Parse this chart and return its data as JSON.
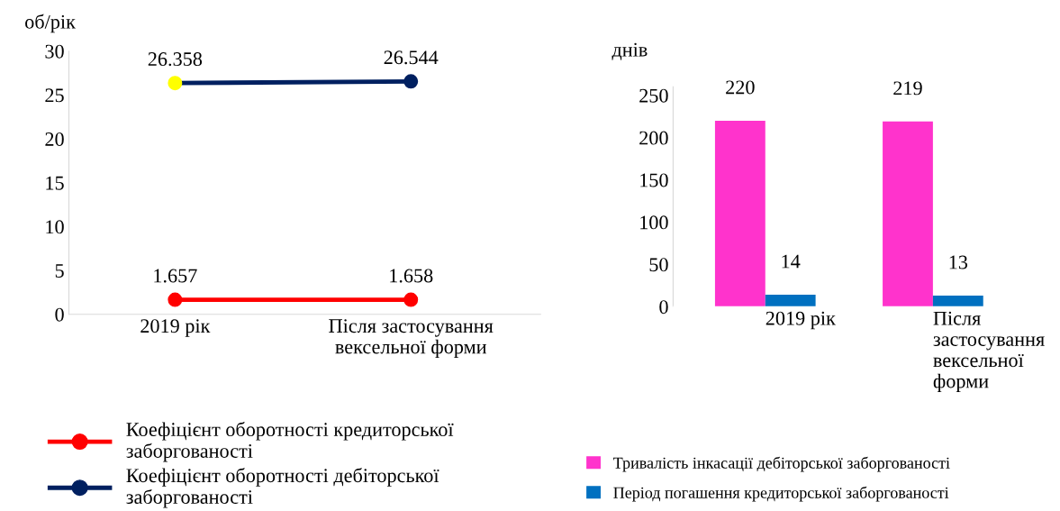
{
  "chart_data": [
    {
      "type": "line",
      "ylabel": "об/рік",
      "categories": [
        "2019 рік",
        "Після застосування вексельної форми"
      ],
      "ylim": [
        0,
        30
      ],
      "yticks": [
        0,
        5,
        10,
        15,
        20,
        25,
        30
      ],
      "marker": "circle",
      "data_labels": true,
      "legend": "bottom",
      "grid": false,
      "series": [
        {
          "name": "Коефіцієнт оборотності кредиторської заборгованості",
          "color": "#ff0000",
          "values": [
            1.657,
            1.658
          ]
        },
        {
          "name": "Коефіцієнт оборотності дебіторської заборгованості",
          "color": "#002060",
          "colors": [
            "#ffff00",
            "#002060"
          ],
          "values": [
            26.358,
            26.544
          ]
        }
      ]
    },
    {
      "type": "bar",
      "ylabel": "днів",
      "categories": [
        "2019 рік",
        "Після застосування вексельної форми"
      ],
      "ylim": [
        0,
        260
      ],
      "yticks": [
        0,
        50,
        100,
        150,
        200,
        250
      ],
      "data_labels": true,
      "legend": "bottom",
      "grid": false,
      "series": [
        {
          "name": "Тривалість інкасації дебіторської заборгованості",
          "color": "#ff33cc",
          "values": [
            220,
            219
          ]
        },
        {
          "name": "Період погашення кредиторської заборгованості",
          "color": "#0070c0",
          "values": [
            14,
            13
          ]
        }
      ]
    }
  ]
}
